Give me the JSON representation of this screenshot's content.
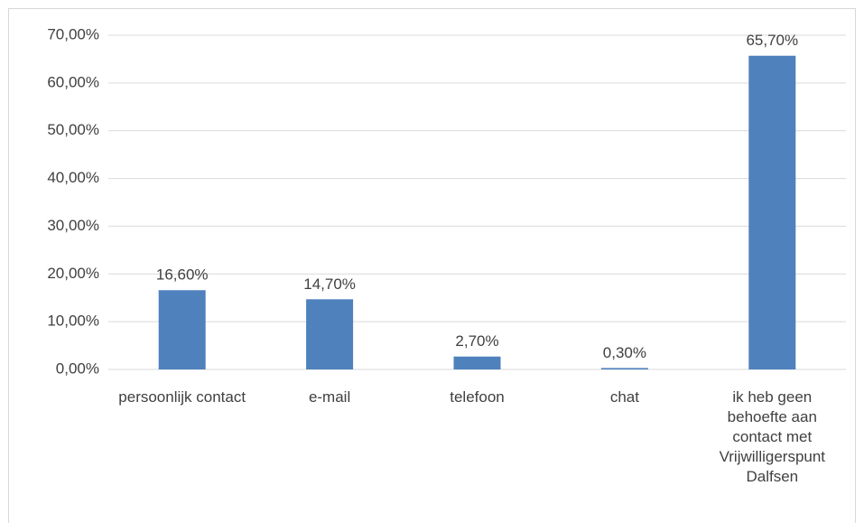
{
  "chart_data": {
    "type": "bar",
    "categories": [
      "persoonlijk contact",
      "e-mail",
      "telefoon",
      "chat",
      "ik heb geen behoefte aan contact met Vrijwilligerspunt Dalfsen"
    ],
    "values": [
      16.6,
      14.7,
      2.7,
      0.3,
      65.7
    ],
    "value_labels": [
      "16,60%",
      "14,70%",
      "2,70%",
      "0,30%",
      "65,70%"
    ],
    "color": "#4f81bd",
    "ylim": [
      0,
      70
    ],
    "yticks": [
      {
        "value": 0,
        "label": "0,00%"
      },
      {
        "value": 10,
        "label": "10,00%"
      },
      {
        "value": 20,
        "label": "20,00%"
      },
      {
        "value": 30,
        "label": "30,00%"
      },
      {
        "value": 40,
        "label": "40,00%"
      },
      {
        "value": 50,
        "label": "50,00%"
      },
      {
        "value": 60,
        "label": "60,00%"
      },
      {
        "value": 70,
        "label": "70,00%"
      }
    ],
    "grid": true
  }
}
